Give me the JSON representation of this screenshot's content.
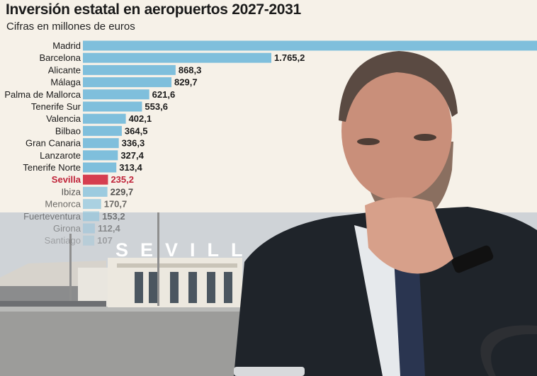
{
  "header": {
    "title": "Inversión estatal en aeropuertos 2027-2031",
    "subtitle": "Cifras en millones de euros"
  },
  "photo": {
    "sign_text": "SEVILL"
  },
  "colors": {
    "bar": "#7fbfdc",
    "highlight": "#d63e4f",
    "label": "#1a1a1a",
    "highlight_label": "#c0243a"
  },
  "chart_data": {
    "type": "bar",
    "orientation": "horizontal",
    "title": "Inversión estatal en aeropuertos 2027-2031",
    "subtitle": "Cifras en millones de euros",
    "categories": [
      "Madrid",
      "Barcelona",
      "Alicante",
      "Málaga",
      "Palma de Mallorca",
      "Tenerife Sur",
      "Valencia",
      "Bilbao",
      "Gran Canaria",
      "Lanzarote",
      "Tenerife Norte",
      "Sevilla",
      "Ibiza",
      "Menorca",
      "Fuerteventura",
      "Girona",
      "Santiago"
    ],
    "values": [
      null,
      1765.2,
      868.3,
      829.7,
      621.6,
      553.6,
      402.1,
      364.5,
      336.3,
      327.4,
      313.4,
      235.2,
      229.7,
      170.7,
      153.2,
      112.4,
      107
    ],
    "value_labels": [
      "",
      "1.765,2",
      "868,3",
      "829,7",
      "621,6",
      "553,6",
      "402,1",
      "364,5",
      "336,3",
      "327,4",
      "313,4",
      "235,2",
      "229,7",
      "170,7",
      "153,2",
      "112,4",
      "107"
    ],
    "highlight": "Sevilla",
    "grid": false
  }
}
